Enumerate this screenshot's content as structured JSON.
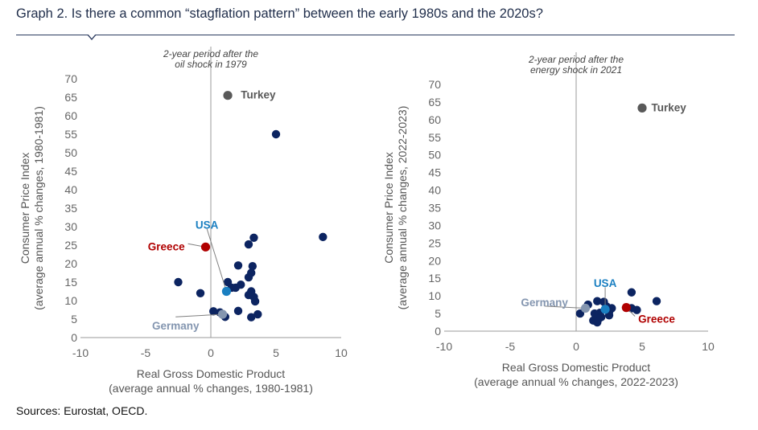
{
  "title": "Graph 2. Is there a common “stagflation pattern” between the early 1980s and the 2020s?",
  "sources": "Sources: Eurostat, OECD.",
  "colors": {
    "default": "#0c2461",
    "turkey": "#595959",
    "greece": "#b00000",
    "usa": "#1a7fc1",
    "germany": "#8496b0",
    "axis": "#9a9a9a",
    "title": "#1f2d4a"
  },
  "chart_data": [
    {
      "type": "scatter",
      "id": "left",
      "annotation": [
        "2-year period after the",
        "oil shock in 1979"
      ],
      "xlabel": [
        "Real Gross Domestic Product",
        "(average annual % changes, 1980-1981)"
      ],
      "ylabel": [
        "Consumer  Price Index",
        "(average annual % changes, 1980-1981)"
      ],
      "xlim": [
        -10,
        10
      ],
      "ylim": [
        0,
        70
      ],
      "xticks": [
        -10,
        -5,
        0,
        5,
        10
      ],
      "xtick_labels": [
        "-10",
        "-5",
        "0",
        "5",
        "10"
      ],
      "yticks": [
        0,
        5,
        10,
        15,
        20,
        25,
        30,
        35,
        40,
        45,
        50,
        55,
        60,
        65,
        70
      ],
      "ytick_labels": [
        "0",
        "5",
        "10",
        "15",
        "20",
        "25",
        "30",
        "35",
        "40",
        "45",
        "50",
        "55",
        "60",
        "65",
        "70"
      ],
      "highlights": [
        {
          "name": "Turkey",
          "x": 1.3,
          "y": 65.5,
          "color": "turkey",
          "label_dx": 1.0,
          "label_dy": 0,
          "anchor": "start"
        },
        {
          "name": "Greece",
          "x": -0.4,
          "y": 24.5,
          "color": "greece",
          "label_dx": -1.6,
          "label_dy": 0,
          "anchor": "end",
          "leader": true
        },
        {
          "name": "USA",
          "x": 1.2,
          "y": 12.5,
          "color": "usa",
          "label_dx": -1.5,
          "label_dy": 17.8,
          "anchor": "middle",
          "leader": true
        },
        {
          "name": "Germany",
          "x": 0.9,
          "y": 6.3,
          "color": "germany",
          "label_dx": -3.6,
          "label_dy": -3.3,
          "anchor": "middle",
          "leader": true
        }
      ],
      "points": [
        {
          "x": 5.0,
          "y": 55.0
        },
        {
          "x": 3.3,
          "y": 27.0
        },
        {
          "x": 2.9,
          "y": 25.2
        },
        {
          "x": 8.6,
          "y": 27.2
        },
        {
          "x": 2.1,
          "y": 19.5
        },
        {
          "x": 3.2,
          "y": 19.3
        },
        {
          "x": 3.1,
          "y": 17.5
        },
        {
          "x": 2.9,
          "y": 16.3
        },
        {
          "x": 2.3,
          "y": 14.3
        },
        {
          "x": 1.3,
          "y": 15.0
        },
        {
          "x": 1.6,
          "y": 13.5
        },
        {
          "x": 1.9,
          "y": 13.5
        },
        {
          "x": -2.5,
          "y": 15.0
        },
        {
          "x": -0.8,
          "y": 12.0
        },
        {
          "x": 3.1,
          "y": 12.5
        },
        {
          "x": 2.9,
          "y": 11.5
        },
        {
          "x": 3.3,
          "y": 11.0
        },
        {
          "x": 3.4,
          "y": 9.8
        },
        {
          "x": 0.2,
          "y": 7.1
        },
        {
          "x": 0.7,
          "y": 6.8
        },
        {
          "x": 2.1,
          "y": 7.2
        },
        {
          "x": 3.6,
          "y": 6.3
        },
        {
          "x": 3.1,
          "y": 5.5
        },
        {
          "x": 1.1,
          "y": 5.6
        }
      ]
    },
    {
      "type": "scatter",
      "id": "right",
      "annotation": [
        "2-year period after the",
        "energy shock in 2021"
      ],
      "xlabel": [
        "Real Gross Domestic Product",
        "(average annual % changes, 2022-2023)"
      ],
      "ylabel": [
        "Consumer  Price Index",
        "(average annual % changes, 2022-2023)"
      ],
      "xlim": [
        -10,
        10
      ],
      "ylim": [
        0,
        70
      ],
      "xticks": [
        -10,
        -5,
        0,
        5,
        10
      ],
      "xtick_labels": [
        "-10",
        "-5",
        "0",
        "5",
        "10"
      ],
      "yticks": [
        0,
        5,
        10,
        15,
        20,
        25,
        30,
        35,
        40,
        45,
        50,
        55,
        60,
        65,
        70
      ],
      "ytick_labels": [
        "0",
        "5",
        "10",
        "15",
        "20",
        "25",
        "30",
        "35",
        "40",
        "45",
        "50",
        "55",
        "60",
        "65",
        "70"
      ],
      "highlights": [
        {
          "name": "Turkey",
          "x": 5.0,
          "y": 63.3,
          "color": "turkey",
          "label_dx": 0.7,
          "label_dy": 0,
          "anchor": "start"
        },
        {
          "name": "Greece",
          "x": 3.8,
          "y": 6.7,
          "color": "greece",
          "label_dx": 0.9,
          "label_dy": -3.4,
          "anchor": "start",
          "leader": true
        },
        {
          "name": "USA",
          "x": 2.2,
          "y": 6.2,
          "color": "usa",
          "label_dx": 0.0,
          "label_dy": 7.2,
          "anchor": "middle",
          "leader": true
        },
        {
          "name": "Germany",
          "x": 0.7,
          "y": 6.5,
          "color": "germany",
          "label_dx": -3.1,
          "label_dy": 1.5,
          "anchor": "middle",
          "leader": true
        }
      ],
      "points": [
        {
          "x": 4.2,
          "y": 11.0
        },
        {
          "x": 6.1,
          "y": 8.5
        },
        {
          "x": 1.6,
          "y": 8.5
        },
        {
          "x": 2.1,
          "y": 8.3
        },
        {
          "x": 4.2,
          "y": 6.5
        },
        {
          "x": 4.6,
          "y": 6.0
        },
        {
          "x": 2.7,
          "y": 6.5
        },
        {
          "x": 2.5,
          "y": 5.5
        },
        {
          "x": 1.8,
          "y": 5.2
        },
        {
          "x": 1.4,
          "y": 5.0
        },
        {
          "x": 0.3,
          "y": 5.0
        },
        {
          "x": 2.5,
          "y": 4.5
        },
        {
          "x": 1.9,
          "y": 4.0
        },
        {
          "x": 1.7,
          "y": 3.5
        },
        {
          "x": 1.3,
          "y": 3.0
        },
        {
          "x": 1.6,
          "y": 2.5
        },
        {
          "x": 0.9,
          "y": 7.5
        },
        {
          "x": 2.3,
          "y": 7.0
        }
      ]
    }
  ]
}
